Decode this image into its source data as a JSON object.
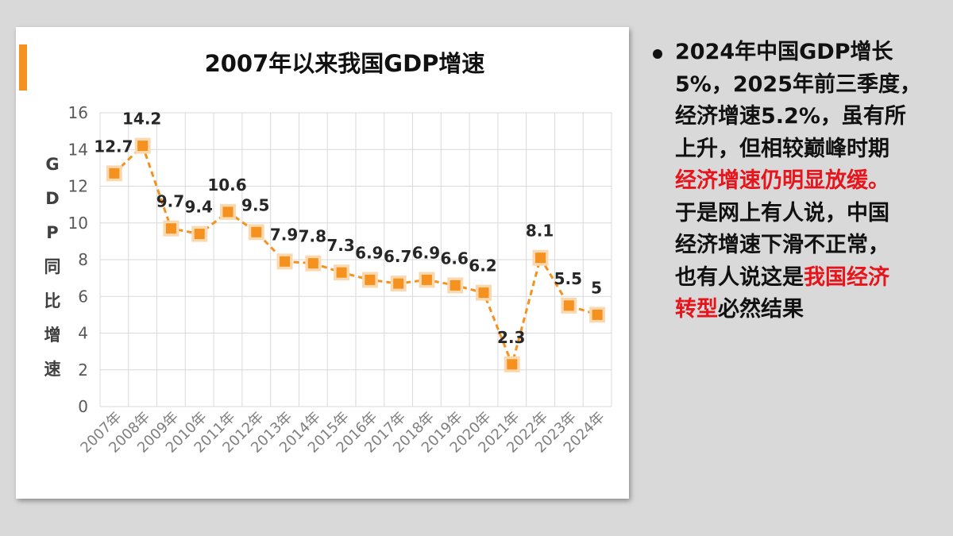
{
  "chart_data": {
    "type": "line",
    "title": "2007年以来我国GDP增速",
    "ylabel": "GDP同比增速",
    "ylabel_chars": [
      "G",
      "D",
      "P",
      "同",
      "比",
      "增",
      "速"
    ],
    "categories": [
      "2007年",
      "2008年",
      "2009年",
      "2010年",
      "2011年",
      "2012年",
      "2013年",
      "2014年",
      "2015年",
      "2016年",
      "2017年",
      "2018年",
      "2019年",
      "2020年",
      "2021年",
      "2022年",
      "2023年",
      "2024年"
    ],
    "values": [
      12.7,
      14.2,
      9.7,
      9.4,
      10.6,
      9.5,
      7.9,
      7.8,
      7.3,
      6.9,
      6.7,
      6.9,
      6.6,
      6.2,
      2.3,
      8.1,
      5.5,
      5
    ],
    "value_labels": [
      "12.7",
      "14.2",
      "9.7",
      "9.4",
      "10.6",
      "9.5",
      "7.9",
      "7.8",
      "7.3",
      "6.9",
      "6.7",
      "6.9",
      "6.6",
      "6.2",
      "2.3",
      "8.1",
      "5.5",
      "5"
    ],
    "yticks": [
      "0",
      "2",
      "4",
      "6",
      "8",
      "10",
      "12",
      "14",
      "16"
    ],
    "ylim": [
      0,
      16
    ],
    "grid": true,
    "legend": "none",
    "line_style": "dashed",
    "marker": "square",
    "colors": {
      "series": "#f5911e",
      "marker_glow": "#fbd9b0",
      "grid": "#d9d9d9",
      "accent": "#f5911e"
    }
  },
  "text_panel": {
    "lines": [
      [
        {
          "t": "2024年中国GDP增长",
          "red": false
        }
      ],
      [
        {
          "t": "5%，2025年前三季度，",
          "red": false
        }
      ],
      [
        {
          "t": "经济增速5.2%，虽有所",
          "red": false
        }
      ],
      [
        {
          "t": "上升，但相较巅峰时期",
          "red": false
        }
      ],
      [
        {
          "t": "经济增速仍明显放缓。",
          "red": true
        }
      ],
      [
        {
          "t": "于是网上有人说，中国",
          "red": false
        }
      ],
      [
        {
          "t": "经济增速下滑不正常，",
          "red": false
        }
      ],
      [
        {
          "t": "也有人说这是",
          "red": false
        },
        {
          "t": "我国经济",
          "red": true
        }
      ],
      [
        {
          "t": "转型",
          "red": true
        },
        {
          "t": "必然结果",
          "red": false
        }
      ]
    ],
    "colors": {
      "text": "#111111",
      "highlight": "#e8141b"
    }
  }
}
